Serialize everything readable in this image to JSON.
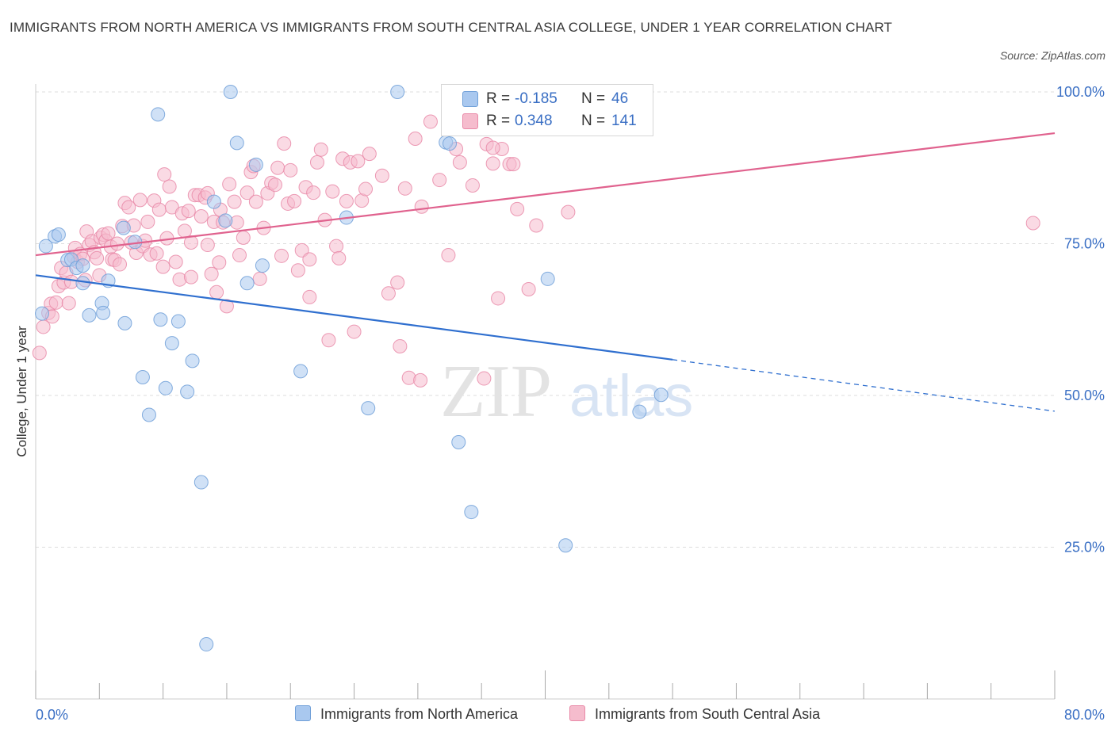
{
  "header": {
    "title": "IMMIGRANTS FROM NORTH AMERICA VS IMMIGRANTS FROM SOUTH CENTRAL ASIA COLLEGE, UNDER 1 YEAR CORRELATION CHART",
    "source": "Source: ZipAtlas.com"
  },
  "stats": [
    {
      "r_label": "R =",
      "r_value": "-0.185",
      "n_label": "N =",
      "n_value": "46"
    },
    {
      "r_label": "R =",
      "r_value": "0.348",
      "n_label": "N =",
      "n_value": "141"
    }
  ],
  "legend": [
    "Immigrants from North America",
    "Immigrants from South Central Asia"
  ],
  "watermark": {
    "part1": "ZIP",
    "part2": "atlas"
  },
  "colors": {
    "blue_fill": "#a9c8ef",
    "blue_stroke": "#6f9fd8",
    "blue_line": "#2f6fcf",
    "pink_fill": "#f5bccd",
    "pink_stroke": "#e98aa8",
    "pink_line": "#e0628e",
    "axis_text": "#3a6fc4",
    "grid": "#dddddd"
  },
  "chart_data": {
    "type": "scatter",
    "title": "IMMIGRANTS FROM NORTH AMERICA VS IMMIGRANTS FROM SOUTH CENTRAL ASIA COLLEGE, UNDER 1 YEAR CORRELATION CHART",
    "xlabel": "",
    "ylabel": "College, Under 1 year",
    "xlim": [
      0,
      80
    ],
    "ylim": [
      0,
      100
    ],
    "x_tick_labels": [
      "0.0%",
      "80.0%"
    ],
    "y_tick_labels": [
      {
        "value": 100,
        "label": "100.0%"
      },
      {
        "value": 75,
        "label": "75.0%"
      },
      {
        "value": 50,
        "label": "50.0%"
      },
      {
        "value": 25,
        "label": "25.0%"
      }
    ],
    "grid": true,
    "legend_position": "bottom",
    "series": [
      {
        "name": "Immigrants from North America",
        "color": "#a9c8ef",
        "points": [
          [
            0.8,
            74.6
          ],
          [
            1.5,
            76.2
          ],
          [
            1.8,
            76.5
          ],
          [
            2.5,
            72.3
          ],
          [
            2.8,
            72.4
          ],
          [
            3.2,
            71.0
          ],
          [
            3.7,
            71.4
          ],
          [
            3.7,
            68.5
          ],
          [
            4.2,
            63.2
          ],
          [
            5.2,
            65.2
          ],
          [
            5.3,
            63.6
          ],
          [
            5.7,
            68.9
          ],
          [
            7.0,
            61.9
          ],
          [
            6.9,
            77.6
          ],
          [
            7.8,
            75.3
          ],
          [
            8.4,
            53.0
          ],
          [
            8.9,
            46.8
          ],
          [
            9.6,
            96.3
          ],
          [
            9.8,
            62.5
          ],
          [
            10.2,
            51.2
          ],
          [
            10.7,
            58.6
          ],
          [
            11.2,
            62.2
          ],
          [
            11.9,
            50.6
          ],
          [
            12.3,
            55.7
          ],
          [
            13.0,
            35.7
          ],
          [
            13.4,
            9.0
          ],
          [
            14.0,
            81.9
          ],
          [
            14.9,
            78.8
          ],
          [
            15.3,
            100.0
          ],
          [
            15.8,
            91.6
          ],
          [
            16.6,
            68.5
          ],
          [
            17.3,
            88.0
          ],
          [
            17.8,
            71.4
          ],
          [
            20.8,
            54.0
          ],
          [
            24.4,
            79.3
          ],
          [
            26.1,
            47.9
          ],
          [
            28.4,
            100.0
          ],
          [
            32.2,
            91.7
          ],
          [
            33.2,
            42.3
          ],
          [
            34.2,
            30.8
          ],
          [
            40.2,
            69.2
          ],
          [
            41.6,
            25.3
          ],
          [
            47.4,
            47.3
          ],
          [
            49.1,
            50.1
          ],
          [
            0.5,
            63.5
          ],
          [
            32.5,
            91.5
          ]
        ]
      },
      {
        "name": "Immigrants from South Central Asia",
        "color": "#f5bccd",
        "points": [
          [
            0.3,
            57.0
          ],
          [
            0.6,
            61.3
          ],
          [
            1.0,
            63.6
          ],
          [
            1.2,
            65.1
          ],
          [
            1.3,
            63.0
          ],
          [
            1.6,
            65.3
          ],
          [
            1.8,
            68.0
          ],
          [
            2.0,
            71.0
          ],
          [
            2.2,
            68.6
          ],
          [
            2.4,
            70.2
          ],
          [
            2.6,
            65.2
          ],
          [
            2.8,
            68.7
          ],
          [
            3.0,
            72.8
          ],
          [
            3.1,
            74.3
          ],
          [
            3.3,
            72.0
          ],
          [
            3.5,
            73.3
          ],
          [
            3.7,
            72.5
          ],
          [
            3.9,
            69.0
          ],
          [
            4.0,
            77.0
          ],
          [
            4.2,
            74.8
          ],
          [
            4.4,
            75.4
          ],
          [
            4.6,
            73.6
          ],
          [
            4.8,
            72.6
          ],
          [
            5.0,
            69.8
          ],
          [
            5.1,
            76.0
          ],
          [
            5.3,
            76.5
          ],
          [
            5.5,
            75.5
          ],
          [
            5.7,
            76.7
          ],
          [
            5.9,
            74.5
          ],
          [
            6.0,
            72.4
          ],
          [
            6.2,
            72.3
          ],
          [
            6.4,
            75.0
          ],
          [
            6.6,
            71.6
          ],
          [
            6.8,
            77.9
          ],
          [
            7.0,
            81.7
          ],
          [
            7.3,
            81.0
          ],
          [
            7.5,
            75.2
          ],
          [
            7.7,
            78.0
          ],
          [
            7.9,
            73.5
          ],
          [
            8.2,
            82.2
          ],
          [
            8.4,
            74.6
          ],
          [
            8.6,
            75.5
          ],
          [
            8.8,
            78.6
          ],
          [
            9.0,
            73.2
          ],
          [
            9.3,
            82.1
          ],
          [
            9.5,
            73.4
          ],
          [
            9.7,
            80.6
          ],
          [
            10.0,
            71.2
          ],
          [
            10.1,
            86.4
          ],
          [
            10.3,
            75.9
          ],
          [
            10.5,
            84.4
          ],
          [
            10.7,
            81.0
          ],
          [
            11.0,
            72.0
          ],
          [
            11.3,
            69.1
          ],
          [
            11.5,
            80.0
          ],
          [
            11.7,
            77.1
          ],
          [
            12.0,
            80.4
          ],
          [
            12.2,
            75.2
          ],
          [
            12.5,
            83.0
          ],
          [
            12.8,
            83.0
          ],
          [
            13.0,
            79.5
          ],
          [
            13.3,
            82.6
          ],
          [
            13.5,
            74.8
          ],
          [
            13.8,
            70.0
          ],
          [
            14.0,
            78.6
          ],
          [
            14.2,
            67.0
          ],
          [
            14.5,
            80.6
          ],
          [
            14.7,
            78.5
          ],
          [
            15.0,
            64.7
          ],
          [
            15.2,
            84.8
          ],
          [
            15.6,
            81.9
          ],
          [
            15.8,
            78.5
          ],
          [
            16.0,
            73.1
          ],
          [
            16.3,
            76.0
          ],
          [
            16.6,
            83.4
          ],
          [
            16.9,
            86.8
          ],
          [
            17.1,
            87.8
          ],
          [
            17.3,
            81.9
          ],
          [
            17.6,
            69.2
          ],
          [
            17.9,
            77.6
          ],
          [
            18.2,
            83.3
          ],
          [
            18.5,
            85.0
          ],
          [
            18.8,
            84.7
          ],
          [
            19.0,
            87.5
          ],
          [
            19.3,
            73.0
          ],
          [
            19.5,
            91.5
          ],
          [
            19.8,
            81.6
          ],
          [
            20.0,
            87.1
          ],
          [
            20.3,
            82.0
          ],
          [
            20.6,
            70.6
          ],
          [
            20.9,
            73.9
          ],
          [
            21.2,
            84.3
          ],
          [
            21.5,
            66.2
          ],
          [
            21.8,
            83.4
          ],
          [
            22.1,
            88.4
          ],
          [
            22.4,
            90.5
          ],
          [
            22.7,
            78.9
          ],
          [
            23.0,
            59.1
          ],
          [
            23.3,
            83.6
          ],
          [
            23.6,
            74.6
          ],
          [
            23.8,
            72.6
          ],
          [
            24.1,
            89.0
          ],
          [
            24.4,
            82.0
          ],
          [
            24.7,
            88.4
          ],
          [
            25.0,
            60.5
          ],
          [
            25.3,
            88.6
          ],
          [
            25.6,
            82.1
          ],
          [
            25.9,
            84.0
          ],
          [
            26.2,
            89.8
          ],
          [
            27.2,
            86.2
          ],
          [
            27.7,
            66.8
          ],
          [
            28.4,
            68.6
          ],
          [
            28.6,
            58.1
          ],
          [
            29.0,
            84.1
          ],
          [
            29.3,
            52.9
          ],
          [
            29.8,
            92.3
          ],
          [
            30.3,
            81.1
          ],
          [
            31.0,
            95.1
          ],
          [
            31.7,
            85.5
          ],
          [
            32.4,
            73.1
          ],
          [
            33.0,
            90.6
          ],
          [
            33.3,
            88.4
          ],
          [
            34.3,
            84.6
          ],
          [
            35.2,
            52.8
          ],
          [
            35.4,
            91.4
          ],
          [
            35.9,
            88.2
          ],
          [
            36.3,
            66.0
          ],
          [
            36.6,
            90.6
          ],
          [
            37.2,
            88.1
          ],
          [
            37.8,
            80.7
          ],
          [
            38.7,
            67.5
          ],
          [
            39.3,
            78.0
          ],
          [
            41.8,
            80.2
          ],
          [
            78.3,
            78.4
          ],
          [
            35.9,
            90.8
          ],
          [
            37.5,
            88.1
          ],
          [
            21.5,
            72.4
          ],
          [
            30.2,
            52.5
          ],
          [
            14.4,
            71.9
          ],
          [
            13.5,
            83.3
          ],
          [
            12.2,
            69.5
          ]
        ]
      }
    ],
    "trend_lines": [
      {
        "series": "Immigrants from North America",
        "x": [
          0,
          50
        ],
        "y": [
          69.8,
          55.9
        ],
        "dashed_to": [
          80,
          47.4
        ]
      },
      {
        "series": "Immigrants from South Central Asia",
        "x": [
          0,
          80
        ],
        "y": [
          73.1,
          93.2
        ]
      }
    ]
  }
}
